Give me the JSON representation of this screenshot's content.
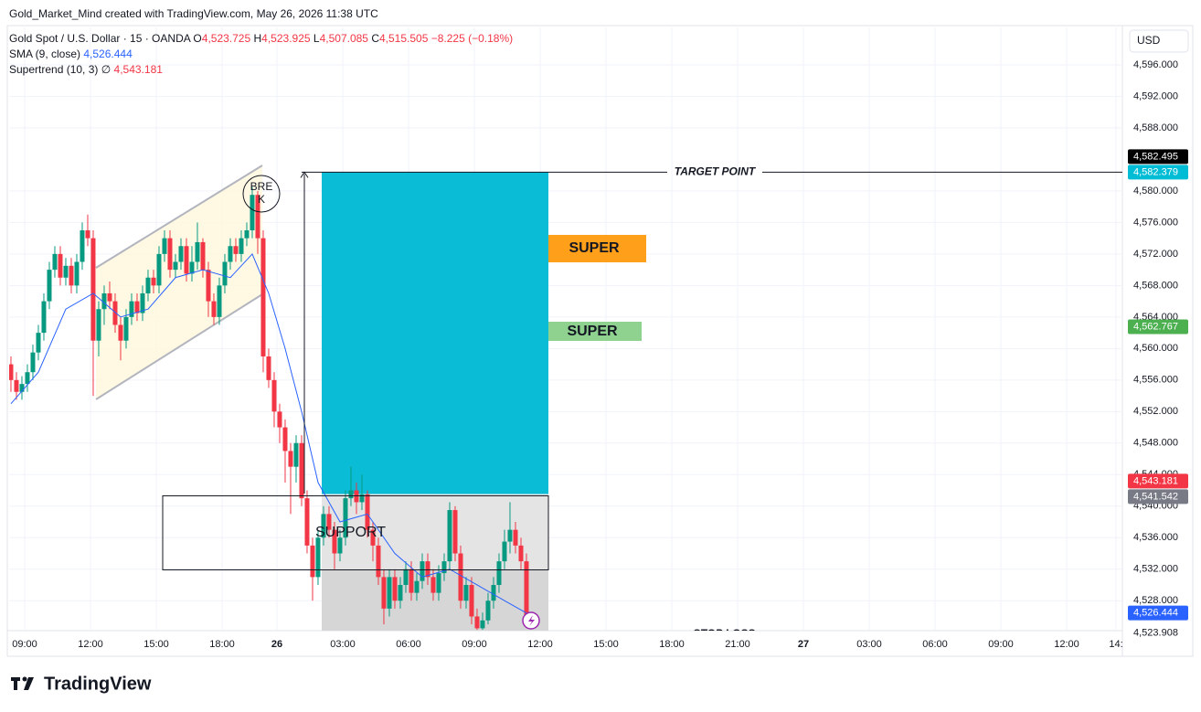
{
  "header": {
    "watermark": "Gold_Market_Mind created with TradingView.com, May 26, 2026 11:38 UTC",
    "symbol": "Gold Spot / U.S. Dollar · 15 · OANDA",
    "o": "O",
    "o_val": "4,523.725",
    "h": "H",
    "h_val": "4,523.925",
    "l": "L",
    "l_val": "4,507.085",
    "c": "C",
    "c_val": "4,515.505",
    "change": "−8.225 (−0.18%)",
    "sma": "SMA (9, close)",
    "sma_val": "4,526.444",
    "st": "Supertrend (10, 3)",
    "st_sym": "∅",
    "st_val": "4,543.181"
  },
  "brand": "TradingView",
  "chart_data": {
    "type": "candlestick",
    "axis_unit": "USD",
    "up_color": "#089981",
    "down_color": "#f23645",
    "grid": true,
    "xlim": [
      -0.33,
      202.67
    ],
    "ylim": [
      4524.2,
      4600.75
    ],
    "yticks": [
      {
        "value": 4596,
        "label": "4,596.000"
      },
      {
        "value": 4592,
        "label": "4,592.000"
      },
      {
        "value": 4588,
        "label": "4,588.000"
      },
      {
        "value": 4580,
        "label": "4,580.000"
      },
      {
        "value": 4576,
        "label": "4,576.000"
      },
      {
        "value": 4572,
        "label": "4,572.000"
      },
      {
        "value": 4568,
        "label": "4,568.000"
      },
      {
        "value": 4564,
        "label": "4,564.000"
      },
      {
        "value": 4560,
        "label": "4,560.000"
      },
      {
        "value": 4556,
        "label": "4,556.000"
      },
      {
        "value": 4552,
        "label": "4,552.000"
      },
      {
        "value": 4548,
        "label": "4,548.000"
      },
      {
        "value": 4544,
        "label": "4,544.000"
      },
      {
        "value": 4540,
        "label": "4,540.000"
      },
      {
        "value": 4536,
        "label": "4,536.000"
      },
      {
        "value": 4532,
        "label": "4,532.000"
      },
      {
        "value": 4528,
        "label": "4,528.000"
      }
    ],
    "xticks": [
      {
        "value": 2.5,
        "label": "09:00"
      },
      {
        "value": 14.5,
        "label": "12:00"
      },
      {
        "value": 26.5,
        "label": "15:00"
      },
      {
        "value": 38.5,
        "label": "18:00"
      },
      {
        "value": 48.5,
        "label": "26"
      },
      {
        "value": 60.5,
        "label": "03:00"
      },
      {
        "value": 72.5,
        "label": "06:00"
      },
      {
        "value": 84.5,
        "label": "09:00"
      },
      {
        "value": 96.5,
        "label": "12:00"
      },
      {
        "value": 108.5,
        "label": "15:00"
      },
      {
        "value": 120.5,
        "label": "18:00"
      },
      {
        "value": 132.5,
        "label": "21:00"
      },
      {
        "value": 144.5,
        "label": "27"
      },
      {
        "value": 156.5,
        "label": "03:00"
      },
      {
        "value": 168.5,
        "label": "06:00"
      },
      {
        "value": 180.5,
        "label": "09:00"
      },
      {
        "value": 192.5,
        "label": "12:00"
      },
      {
        "value": 201.5,
        "label": "14:"
      }
    ],
    "open": [
      4558,
      4556,
      4554.5,
      4555.5,
      4557,
      4559.5,
      4562,
      4566,
      4570,
      4572,
      4569,
      4570.5,
      4568,
      4571,
      4575,
      4574,
      4561,
      4565,
      4567,
      4566,
      4563,
      4561,
      4564,
      4566,
      4564.5,
      4567,
      4569,
      4568,
      4572,
      4574,
      4570,
      4571,
      4573,
      4569.5,
      4571,
      4573.5,
      4570,
      4566,
      4564,
      4568,
      4571,
      4573,
      4572,
      4574,
      4575,
      4579.5,
      4574,
      4559,
      4556,
      4552,
      4550,
      4547,
      4545,
      4548,
      4541,
      4535,
      4531,
      4536,
      4539,
      4537,
      4534,
      4536,
      4541,
      4542,
      4540.5,
      4541.5,
      4537,
      4535,
      4531,
      4527,
      4531,
      4528,
      4530,
      4532,
      4529,
      4530.5,
      4533,
      4531,
      4529,
      4531.5,
      4533,
      4539.5,
      4534,
      4528,
      4530,
      4526,
      4524.5,
      4525.5,
      4528,
      4530,
      4533,
      4535.5,
      4537,
      4535,
      4533
    ],
    "high": [
      4559,
      4557,
      4556.5,
      4558,
      4560.5,
      4563,
      4567,
      4571,
      4573,
      4573,
      4571.5,
      4571.5,
      4572,
      4576,
      4577,
      4575,
      4566,
      4568,
      4568.5,
      4567,
      4564,
      4565,
      4567,
      4567,
      4568,
      4570,
      4570,
      4573,
      4575,
      4575,
      4572,
      4574,
      4574,
      4573,
      4576,
      4574,
      4571,
      4567,
      4569,
      4572,
      4574,
      4574,
      4575,
      4576,
      4580.5,
      4580,
      4575,
      4560,
      4557,
      4553,
      4551,
      4548,
      4549,
      4549,
      4542,
      4536,
      4537,
      4540,
      4540,
      4538,
      4537,
      4542,
      4545,
      4543,
      4544,
      4542,
      4538,
      4536,
      4532,
      4532,
      4532,
      4531,
      4533,
      4533,
      4531.5,
      4534,
      4534,
      4532,
      4532.5,
      4534,
      4540.5,
      4540,
      4535,
      4531,
      4531,
      4527,
      4526.5,
      4529,
      4531,
      4534,
      4537,
      4540.5,
      4538,
      4536,
      4534
    ],
    "low": [
      4554.5,
      4553.5,
      4553.5,
      4554.5,
      4556,
      4558.5,
      4561,
      4565,
      4569,
      4568,
      4568,
      4567,
      4567,
      4570,
      4573,
      4554,
      4559,
      4563,
      4565,
      4562,
      4558.5,
      4560,
      4563,
      4563.5,
      4563.5,
      4566,
      4567,
      4567,
      4571,
      4569,
      4569,
      4570,
      4568.5,
      4568.5,
      4570,
      4569,
      4564,
      4563,
      4563,
      4567,
      4570,
      4571,
      4571,
      4573,
      4574,
      4572,
      4557,
      4555,
      4550,
      4548,
      4543,
      4539,
      4543,
      4540,
      4534,
      4528,
      4530,
      4535,
      4536,
      4532,
      4533,
      4535,
      4540,
      4539,
      4539.5,
      4536,
      4533,
      4530,
      4525,
      4526,
      4527,
      4527,
      4529,
      4528,
      4528,
      4529.5,
      4530,
      4528,
      4528,
      4530.5,
      4532,
      4533,
      4527,
      4527,
      4525,
      4524.3,
      4524.3,
      4525,
      4527,
      4529,
      4532,
      4534,
      4534,
      4532,
      4524.5
    ],
    "close": [
      4556,
      4554.5,
      4555.5,
      4557,
      4559.5,
      4562,
      4566,
      4570,
      4572,
      4569,
      4570.5,
      4568,
      4571,
      4575,
      4574,
      4561,
      4565,
      4567,
      4566,
      4563,
      4561,
      4564,
      4566,
      4564.5,
      4567,
      4569,
      4568,
      4572,
      4574,
      4570,
      4571,
      4573,
      4569.5,
      4571,
      4573.5,
      4570,
      4566,
      4564,
      4568,
      4571,
      4573,
      4572,
      4574,
      4575,
      4579.5,
      4574,
      4559,
      4556,
      4552,
      4550,
      4547,
      4545,
      4548,
      4541,
      4535,
      4531,
      4536,
      4539,
      4537,
      4534,
      4536,
      4541,
      4542,
      4540.5,
      4541.5,
      4537,
      4535,
      4531,
      4527,
      4531,
      4528,
      4530,
      4532,
      4529,
      4530.5,
      4533,
      4531,
      4529,
      4531.5,
      4533,
      4539.5,
      4534,
      4528,
      4530,
      4526,
      4524.5,
      4525.5,
      4528,
      4530,
      4533,
      4535.5,
      4537,
      4535,
      4533,
      4525.5
    ],
    "sma": {
      "color": "#2962ff",
      "x": [
        0,
        5,
        10,
        15,
        20,
        25,
        30,
        35,
        40,
        44,
        47,
        50,
        53,
        56,
        60,
        65,
        70,
        75,
        80,
        85,
        90,
        94
      ],
      "values": [
        4553,
        4557,
        4565,
        4567,
        4564,
        4565,
        4569,
        4570,
        4569,
        4572,
        4567,
        4560,
        4552,
        4543,
        4538,
        4539,
        4534,
        4531,
        4532,
        4530,
        4528,
        4526.444
      ]
    },
    "price_tags": [
      {
        "value": 4582.379,
        "label": "4,582.379",
        "color": "#00bcd4"
      },
      {
        "value": 4582.495,
        "label": "4,582.495",
        "color": "#000000"
      },
      {
        "value": 4562.767,
        "label": "4,562.767",
        "color": "#4caf50"
      },
      {
        "value": 4543.181,
        "label": "4,543.181",
        "color": "#f23645"
      },
      {
        "value": 4541.542,
        "label": "4,541.542",
        "color": "#787b86"
      },
      {
        "value": 4526.444,
        "label": "4,526.444",
        "color": "#2962ff"
      },
      {
        "value": 4523.908,
        "label": "4,523.908",
        "color": "#e0e3eb"
      }
    ],
    "annotations": {
      "target": "TARGET POINT",
      "support": "SUPPORT",
      "super_1": "SUPER",
      "super_2": "SUPER",
      "break_1": "BRE",
      "break_2": "K",
      "stop": "STOP LOSS"
    }
  }
}
